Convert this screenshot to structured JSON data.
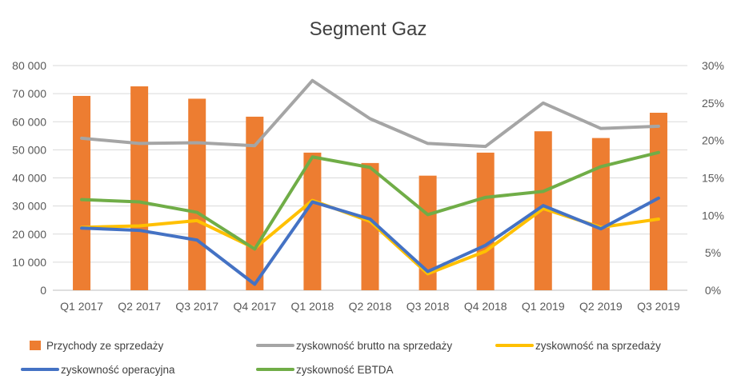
{
  "chart_data": {
    "type": "bar",
    "title": "Segment Gaz",
    "categories": [
      "Q1 2017",
      "Q2 2017",
      "Q3 2017",
      "Q4 2017",
      "Q1 2018",
      "Q2 2018",
      "Q3 2018",
      "Q4 2018",
      "Q1 2019",
      "Q2 2019",
      "Q3 2019"
    ],
    "left_axis": {
      "ylim": [
        0,
        80000
      ],
      "ticks": [
        0,
        10000,
        20000,
        30000,
        40000,
        50000,
        60000,
        70000,
        80000
      ],
      "tick_labels": [
        "0",
        "10 000",
        "20 000",
        "30 000",
        "40 000",
        "50 000",
        "60 000",
        "70 000",
        "80 000"
      ]
    },
    "right_axis": {
      "ylim": [
        0,
        30
      ],
      "ticks": [
        0,
        5,
        10,
        15,
        20,
        25,
        30
      ],
      "tick_labels": [
        "0%",
        "5%",
        "10%",
        "15%",
        "20%",
        "25%",
        "30%"
      ]
    },
    "grid": true,
    "legend_position": "bottom",
    "series": [
      {
        "name": "Przychody ze sprzedaży",
        "type": "bar",
        "axis": "left",
        "color": "#ED7D31",
        "values": [
          69200,
          72600,
          68200,
          61800,
          49000,
          45300,
          40800,
          49000,
          56600,
          54200,
          63200
        ]
      },
      {
        "name": "zyskowność brutto na sprzedaży",
        "type": "line",
        "axis": "right",
        "color": "#A5A5A5",
        "values": [
          20.3,
          19.6,
          19.7,
          19.3,
          28.0,
          22.9,
          19.6,
          19.2,
          25.0,
          21.6,
          21.9
        ]
      },
      {
        "name": "zyskowność na sprzedaży",
        "type": "line",
        "axis": "right",
        "color": "#FFC000",
        "values": [
          8.4,
          8.6,
          9.3,
          5.6,
          12.0,
          9.2,
          2.2,
          5.2,
          10.9,
          8.4,
          9.5
        ]
      },
      {
        "name": "zyskowność operacyjna",
        "type": "line",
        "axis": "right",
        "color": "#4472C4",
        "values": [
          8.3,
          8.0,
          6.7,
          0.8,
          11.8,
          9.5,
          2.5,
          6.0,
          11.3,
          8.2,
          12.3
        ]
      },
      {
        "name": "zyskowność EBTDA",
        "type": "line",
        "axis": "right",
        "color": "#70AD47",
        "values": [
          12.1,
          11.8,
          10.4,
          5.5,
          17.8,
          16.4,
          10.1,
          12.4,
          13.2,
          16.5,
          18.4
        ]
      }
    ]
  }
}
